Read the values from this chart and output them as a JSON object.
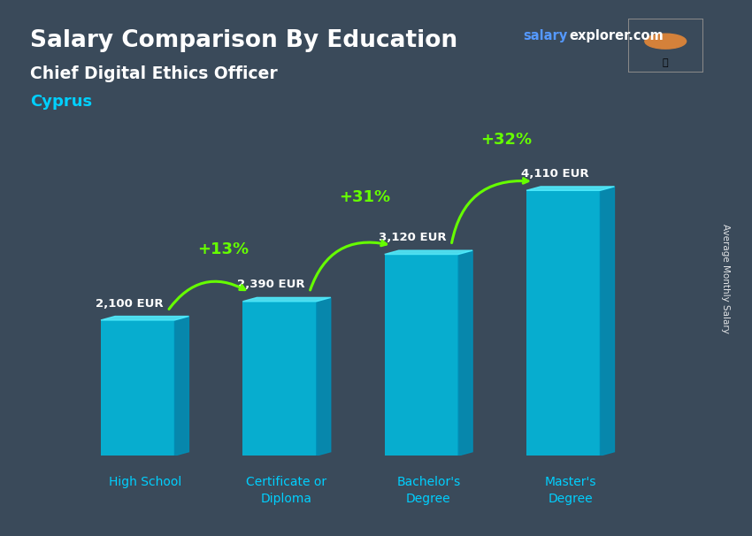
{
  "title": "Salary Comparison By Education",
  "subtitle": "Chief Digital Ethics Officer",
  "country": "Cyprus",
  "ylabel": "Average Monthly Salary",
  "categories": [
    "High School",
    "Certificate or\nDiploma",
    "Bachelor's\nDegree",
    "Master's\nDegree"
  ],
  "values": [
    2100,
    2390,
    3120,
    4110
  ],
  "value_labels": [
    "2,100 EUR",
    "2,390 EUR",
    "3,120 EUR",
    "4,110 EUR"
  ],
  "pct_changes": [
    "+13%",
    "+31%",
    "+32%"
  ],
  "bar_color_front": "#00bce0",
  "bar_color_top": "#50eeff",
  "bar_color_side": "#0090b8",
  "bg_color": "#3a4a5a",
  "title_color": "#ffffff",
  "subtitle_color": "#ffffff",
  "country_color": "#00d0ff",
  "watermark_salary_color": "#5599ff",
  "watermark_explorer_color": "#ffffff",
  "pct_color": "#66ff00",
  "category_color": "#00d0ff",
  "value_label_color": "#ffffff",
  "figsize": [
    8.5,
    6.06
  ],
  "dpi": 100
}
